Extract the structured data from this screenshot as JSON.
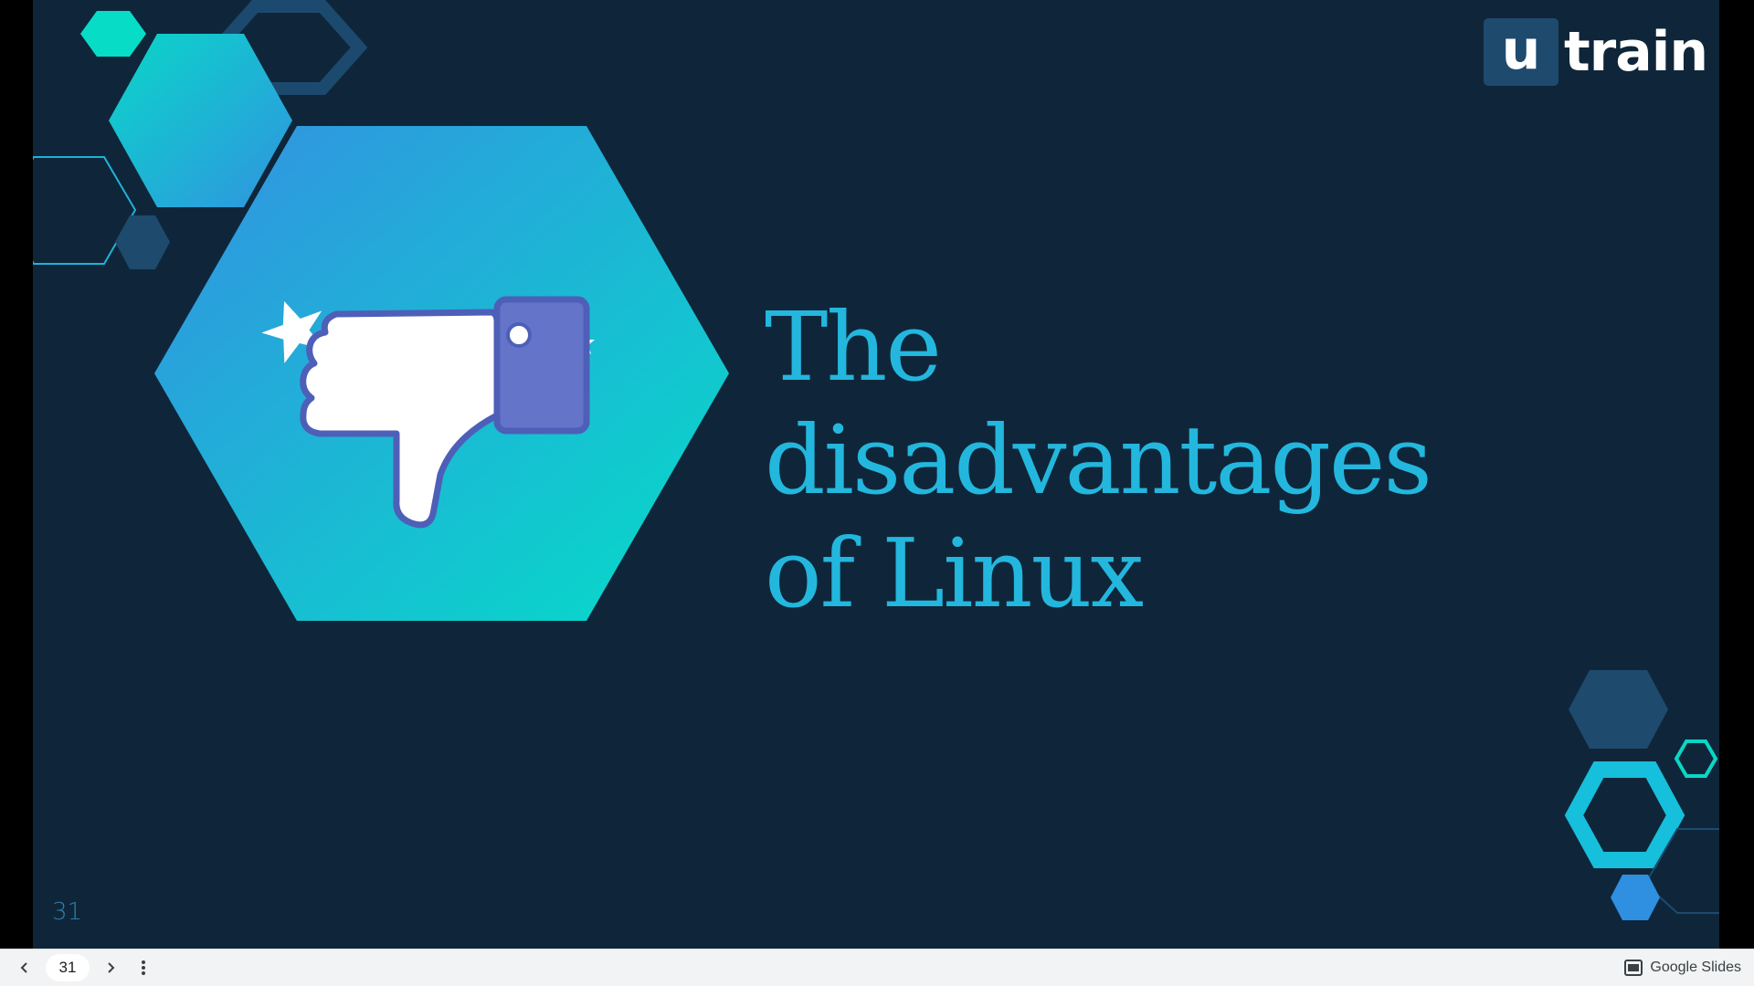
{
  "slide": {
    "title_lines": [
      "The",
      "disadvantages",
      "of Linux"
    ],
    "slide_number": "31",
    "logo": {
      "mark": "u",
      "text": "train"
    },
    "illustration": "thumbs-down-icon",
    "colors": {
      "background": "#0f263a",
      "title": "#23b7de",
      "teal": "#0bd6c5",
      "blue": "#2f95e0",
      "navy_hex": "#1e4a6e",
      "thumb_blue": "#6474c9"
    }
  },
  "viewer": {
    "current_page": "31",
    "brand_label": "Google Slides",
    "icons": {
      "prev": "chevron-left-icon",
      "next": "chevron-right-icon",
      "menu": "more-vertical-icon",
      "brand": "slides-icon"
    }
  }
}
